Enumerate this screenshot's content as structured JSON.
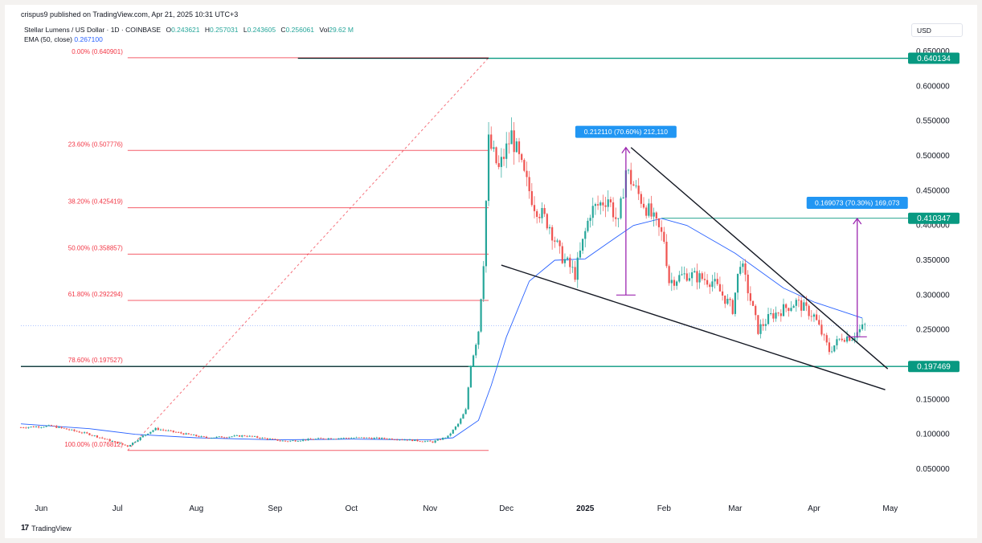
{
  "header": {
    "published": "crispus9 published on TradingView.com, Apr 21, 2025 10:31 UTC+3",
    "symbol": "Stellar Lumens / US Dollar · 1D · COINBASE",
    "ohlc": [
      {
        "label": "O",
        "value": "0.243621"
      },
      {
        "label": "H",
        "value": "0.257031"
      },
      {
        "label": "L",
        "value": "0.243605"
      },
      {
        "label": "C",
        "value": "0.256061"
      },
      {
        "label": "Vol",
        "value": "29.62 M"
      }
    ],
    "ema_label": "EMA (50, close)",
    "ema_value": "0.267100",
    "currency": "USD"
  },
  "footer": {
    "logo_text": "TradingView",
    "logo_glyph": "17"
  },
  "colors": {
    "up": "#26a69a",
    "down": "#ef5350",
    "ema": "#2962ff",
    "fib": "#f23645",
    "horizontal": "#089981",
    "measure": "#9c27b0",
    "trend": "#131722",
    "callout": "#2196f3"
  },
  "chart_data": {
    "type": "candlestick",
    "title": "Stellar Lumens / US Dollar · 1D · COINBASE",
    "ylim": [
      0.0,
      0.66
    ],
    "y_ticks": [
      "0.050000",
      "0.100000",
      "0.150000",
      "0.200000",
      "0.250000",
      "0.300000",
      "0.350000",
      "0.400000",
      "0.450000",
      "0.500000",
      "0.550000",
      "0.600000",
      "0.650000"
    ],
    "x_ticks": [
      "Jun",
      "Jul",
      "Aug",
      "Sep",
      "Oct",
      "Nov",
      "Dec",
      "2025",
      "Feb",
      "Mar",
      "Apr",
      "May"
    ],
    "x_start": "2024-05-24",
    "x_end": "2025-05-08",
    "fibonacci": [
      {
        "label": "0.00% (0.640901)",
        "value": 0.640901
      },
      {
        "label": "23.60% (0.507776)",
        "value": 0.507776
      },
      {
        "label": "38.20% (0.425419)",
        "value": 0.425419
      },
      {
        "label": "50.00% (0.358857)",
        "value": 0.358857
      },
      {
        "label": "61.80% (0.292294)",
        "value": 0.292294
      },
      {
        "label": "78.60% (0.197527)",
        "value": 0.197527
      },
      {
        "label": "100.00% (0.076812)",
        "value": 0.076812
      }
    ],
    "horizontal_levels": [
      {
        "label": "0.640134",
        "value": 0.640134
      },
      {
        "label": "0.410347",
        "value": 0.410347
      },
      {
        "label": "0.197469",
        "value": 0.197469
      }
    ],
    "measurements": [
      {
        "label": "0.212110 (70.60%) 212,110",
        "date": "2025-01-17",
        "from": 0.3,
        "to": 0.512
      },
      {
        "label": "0.169073 (70.30%) 169,073",
        "date": "2025-04-18",
        "from": 0.24,
        "to": 0.41
      }
    ],
    "trendlines": [
      {
        "from_date": "2025-01-19",
        "from": 0.512,
        "to_date": "2025-04-30",
        "to": 0.194
      },
      {
        "from_date": "2024-11-29",
        "from": 0.343,
        "to_date": "2025-04-29",
        "to": 0.164
      }
    ],
    "fib_anchor": {
      "from_date": "2024-07-05",
      "from": 0.076812,
      "to_date": "2024-11-24",
      "to": 0.640901
    },
    "last_close": 0.256061,
    "ema": [
      {
        "date": "2024-05-24",
        "value": 0.115
      },
      {
        "date": "2024-06-20",
        "value": 0.108
      },
      {
        "date": "2024-07-08",
        "value": 0.1
      },
      {
        "date": "2024-08-01",
        "value": 0.095
      },
      {
        "date": "2024-09-01",
        "value": 0.092
      },
      {
        "date": "2024-10-01",
        "value": 0.093
      },
      {
        "date": "2024-11-01",
        "value": 0.092
      },
      {
        "date": "2024-11-10",
        "value": 0.095
      },
      {
        "date": "2024-11-20",
        "value": 0.12
      },
      {
        "date": "2024-11-25",
        "value": 0.17
      },
      {
        "date": "2024-12-01",
        "value": 0.24
      },
      {
        "date": "2024-12-10",
        "value": 0.32
      },
      {
        "date": "2024-12-20",
        "value": 0.35
      },
      {
        "date": "2025-01-01",
        "value": 0.352
      },
      {
        "date": "2025-01-10",
        "value": 0.375
      },
      {
        "date": "2025-01-20",
        "value": 0.4
      },
      {
        "date": "2025-01-31",
        "value": 0.41
      },
      {
        "date": "2025-02-10",
        "value": 0.4
      },
      {
        "date": "2025-03-01",
        "value": 0.36
      },
      {
        "date": "2025-03-20",
        "value": 0.31
      },
      {
        "date": "2025-04-01",
        "value": 0.29
      },
      {
        "date": "2025-04-20",
        "value": 0.267
      }
    ],
    "price_path": [
      {
        "date": "2024-05-24",
        "value": 0.11
      },
      {
        "date": "2024-06-05",
        "value": 0.112
      },
      {
        "date": "2024-06-20",
        "value": 0.1
      },
      {
        "date": "2024-07-05",
        "value": 0.083
      },
      {
        "date": "2024-07-12",
        "value": 0.1
      },
      {
        "date": "2024-07-16",
        "value": 0.108
      },
      {
        "date": "2024-08-05",
        "value": 0.095
      },
      {
        "date": "2024-08-20",
        "value": 0.098
      },
      {
        "date": "2024-09-05",
        "value": 0.09
      },
      {
        "date": "2024-09-20",
        "value": 0.094
      },
      {
        "date": "2024-10-05",
        "value": 0.095
      },
      {
        "date": "2024-10-20",
        "value": 0.093
      },
      {
        "date": "2024-11-02",
        "value": 0.089
      },
      {
        "date": "2024-11-08",
        "value": 0.097
      },
      {
        "date": "2024-11-12",
        "value": 0.115
      },
      {
        "date": "2024-11-15",
        "value": 0.135
      },
      {
        "date": "2024-11-17",
        "value": 0.2
      },
      {
        "date": "2024-11-20",
        "value": 0.25
      },
      {
        "date": "2024-11-22",
        "value": 0.35
      },
      {
        "date": "2024-11-24",
        "value": 0.52
      },
      {
        "date": "2024-11-28",
        "value": 0.48
      },
      {
        "date": "2024-12-03",
        "value": 0.53
      },
      {
        "date": "2024-12-08",
        "value": 0.47
      },
      {
        "date": "2024-12-12",
        "value": 0.43
      },
      {
        "date": "2024-12-18",
        "value": 0.4
      },
      {
        "date": "2024-12-22",
        "value": 0.36
      },
      {
        "date": "2024-12-28",
        "value": 0.33
      },
      {
        "date": "2025-01-03",
        "value": 0.42
      },
      {
        "date": "2025-01-10",
        "value": 0.44
      },
      {
        "date": "2025-01-14",
        "value": 0.4
      },
      {
        "date": "2025-01-17",
        "value": 0.48
      },
      {
        "date": "2025-01-21",
        "value": 0.45
      },
      {
        "date": "2025-01-26",
        "value": 0.42
      },
      {
        "date": "2025-02-01",
        "value": 0.38
      },
      {
        "date": "2025-02-03",
        "value": 0.32
      },
      {
        "date": "2025-02-10",
        "value": 0.33
      },
      {
        "date": "2025-02-20",
        "value": 0.32
      },
      {
        "date": "2025-02-28",
        "value": 0.28
      },
      {
        "date": "2025-03-03",
        "value": 0.35
      },
      {
        "date": "2025-03-10",
        "value": 0.25
      },
      {
        "date": "2025-03-15",
        "value": 0.27
      },
      {
        "date": "2025-03-25",
        "value": 0.29
      },
      {
        "date": "2025-04-01",
        "value": 0.27
      },
      {
        "date": "2025-04-07",
        "value": 0.22
      },
      {
        "date": "2025-04-12",
        "value": 0.24
      },
      {
        "date": "2025-04-16",
        "value": 0.24
      },
      {
        "date": "2025-04-21",
        "value": 0.256
      }
    ]
  }
}
